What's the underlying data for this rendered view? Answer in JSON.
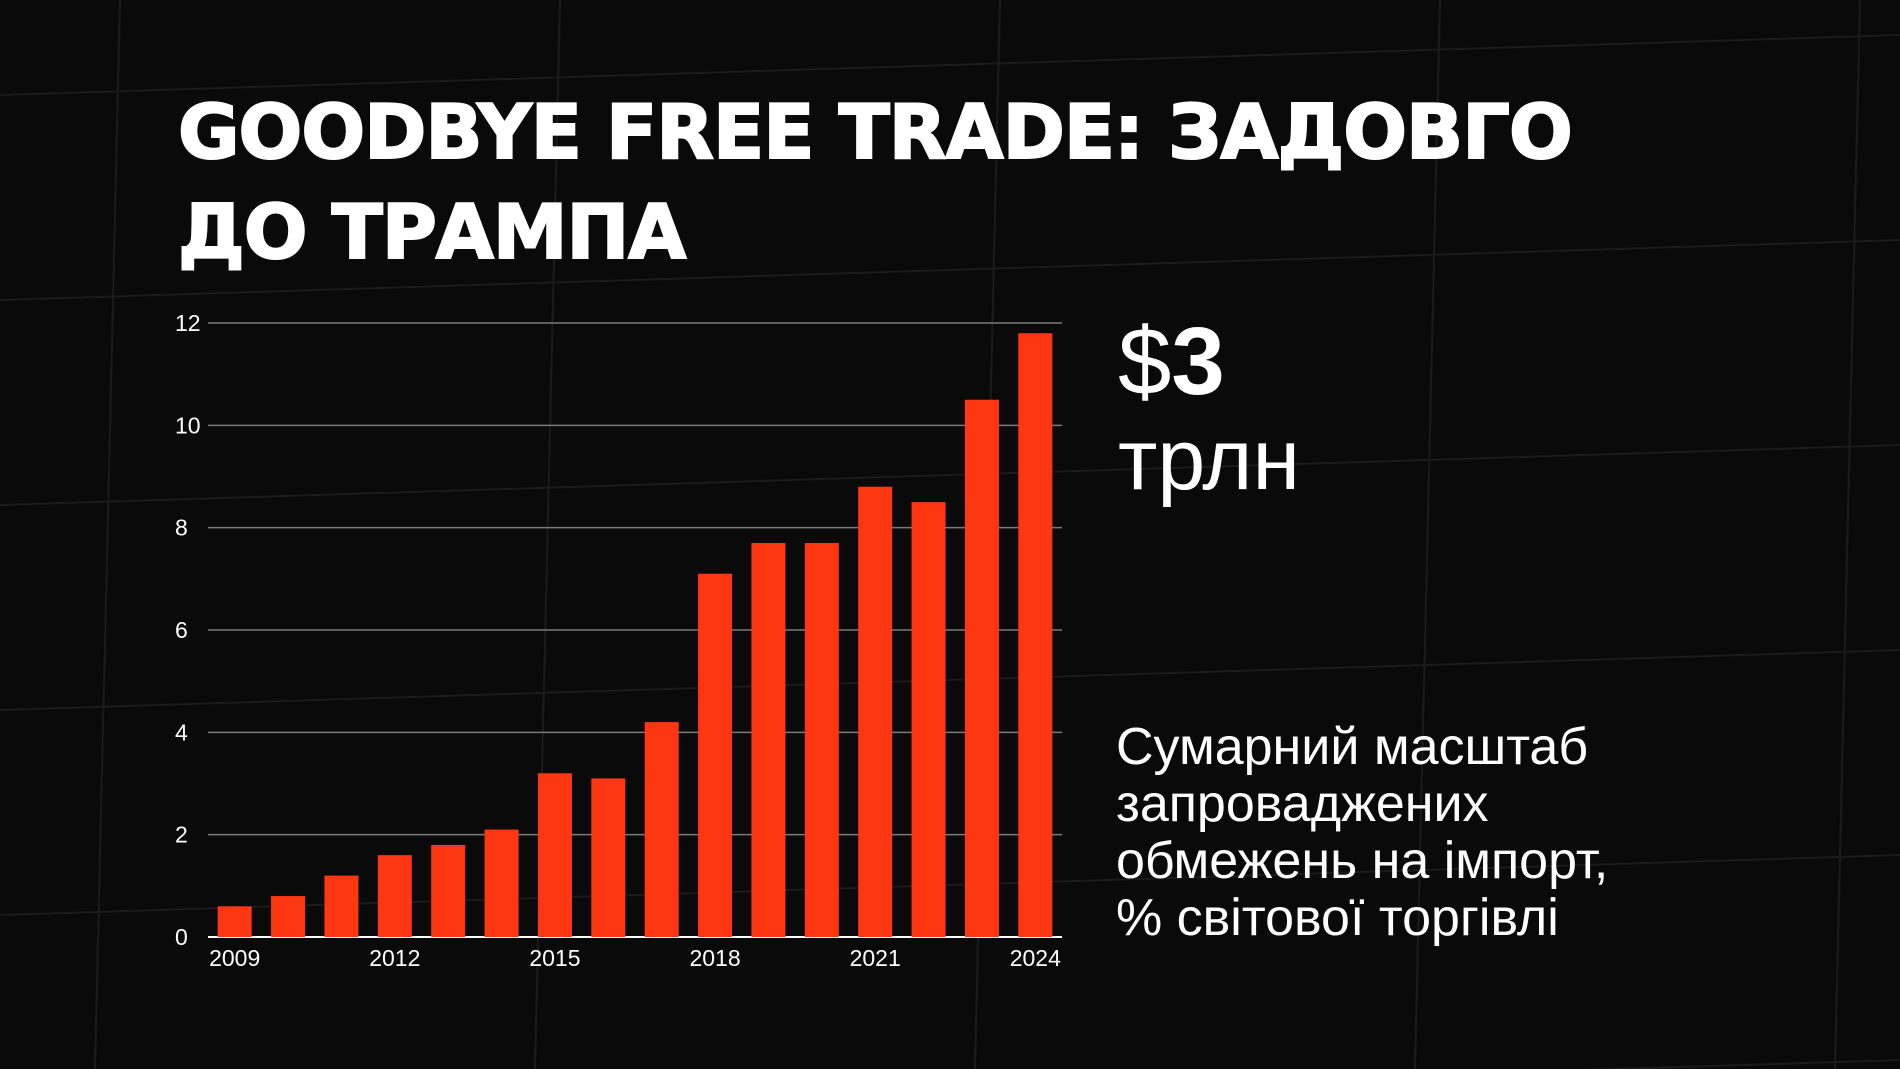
{
  "title": "GOODBYE FREE TRADE: ЗАДОВГО ДО ТРАМПА",
  "stat": {
    "currency": "$",
    "value": "3",
    "unit": "трлн"
  },
  "caption": "Сумарний масштаб\nзапроваджених\nобмежень на імпорт,\n% світової торгівлі",
  "colors": {
    "background": "#0b0a0a",
    "bar": "#ff3612",
    "text": "#ffffff",
    "gridline": "#7a7a7a"
  },
  "chart_data": {
    "type": "bar",
    "categories": [
      "2009",
      "2010",
      "2011",
      "2012",
      "2013",
      "2014",
      "2015",
      "2016",
      "2017",
      "2018",
      "2019",
      "2020",
      "2021",
      "2022",
      "2023",
      "2024"
    ],
    "x_tick_labels": [
      "2009",
      "2012",
      "2015",
      "2018",
      "2021",
      "2024"
    ],
    "values": [
      0.6,
      0.8,
      1.2,
      1.6,
      1.8,
      2.1,
      3.2,
      3.1,
      4.2,
      7.1,
      7.7,
      7.7,
      8.8,
      8.5,
      10.5,
      11.8
    ],
    "y_ticks": [
      "0",
      "2",
      "4",
      "6",
      "8",
      "10",
      "12"
    ],
    "ylim": [
      0,
      12
    ],
    "grid": true,
    "title": "",
    "xlabel": "",
    "ylabel": ""
  }
}
